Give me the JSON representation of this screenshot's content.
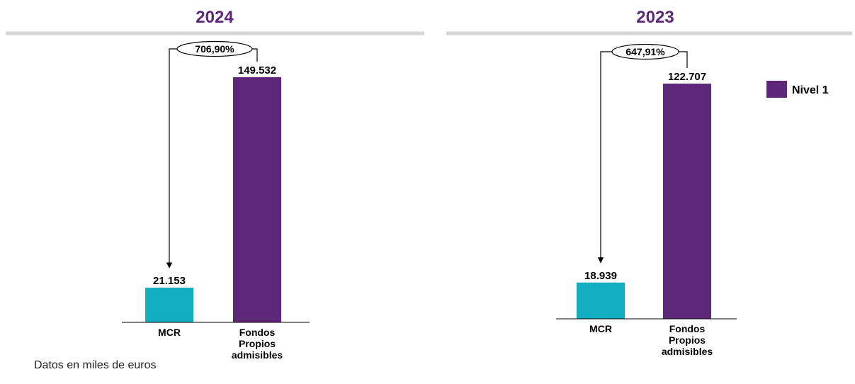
{
  "colors": {
    "mcr": "#12aebf",
    "fondos": "#5e2878",
    "title": "#5e2878",
    "rule": "#d4d4d4",
    "text": "#000000"
  },
  "legend": {
    "label": "Nivel 1",
    "color": "#5e2878"
  },
  "footnote": "Datos en miles de euros",
  "chart_data": [
    {
      "type": "bar",
      "title": "2024",
      "categories": [
        "MCR",
        "Fondos Propios admisibles"
      ],
      "values": [
        21153,
        149532
      ],
      "value_labels": [
        "21.153",
        "149.532"
      ],
      "ratio_label": "706,90%",
      "ylim": [
        0,
        162000
      ],
      "grid": false
    },
    {
      "type": "bar",
      "title": "2023",
      "categories": [
        "MCR",
        "Fondos Propios admisibles"
      ],
      "values": [
        18939,
        122707
      ],
      "value_labels": [
        "18.939",
        "122.707"
      ],
      "ratio_label": "647,91%",
      "ylim": [
        0,
        132700
      ],
      "grid": false
    }
  ]
}
